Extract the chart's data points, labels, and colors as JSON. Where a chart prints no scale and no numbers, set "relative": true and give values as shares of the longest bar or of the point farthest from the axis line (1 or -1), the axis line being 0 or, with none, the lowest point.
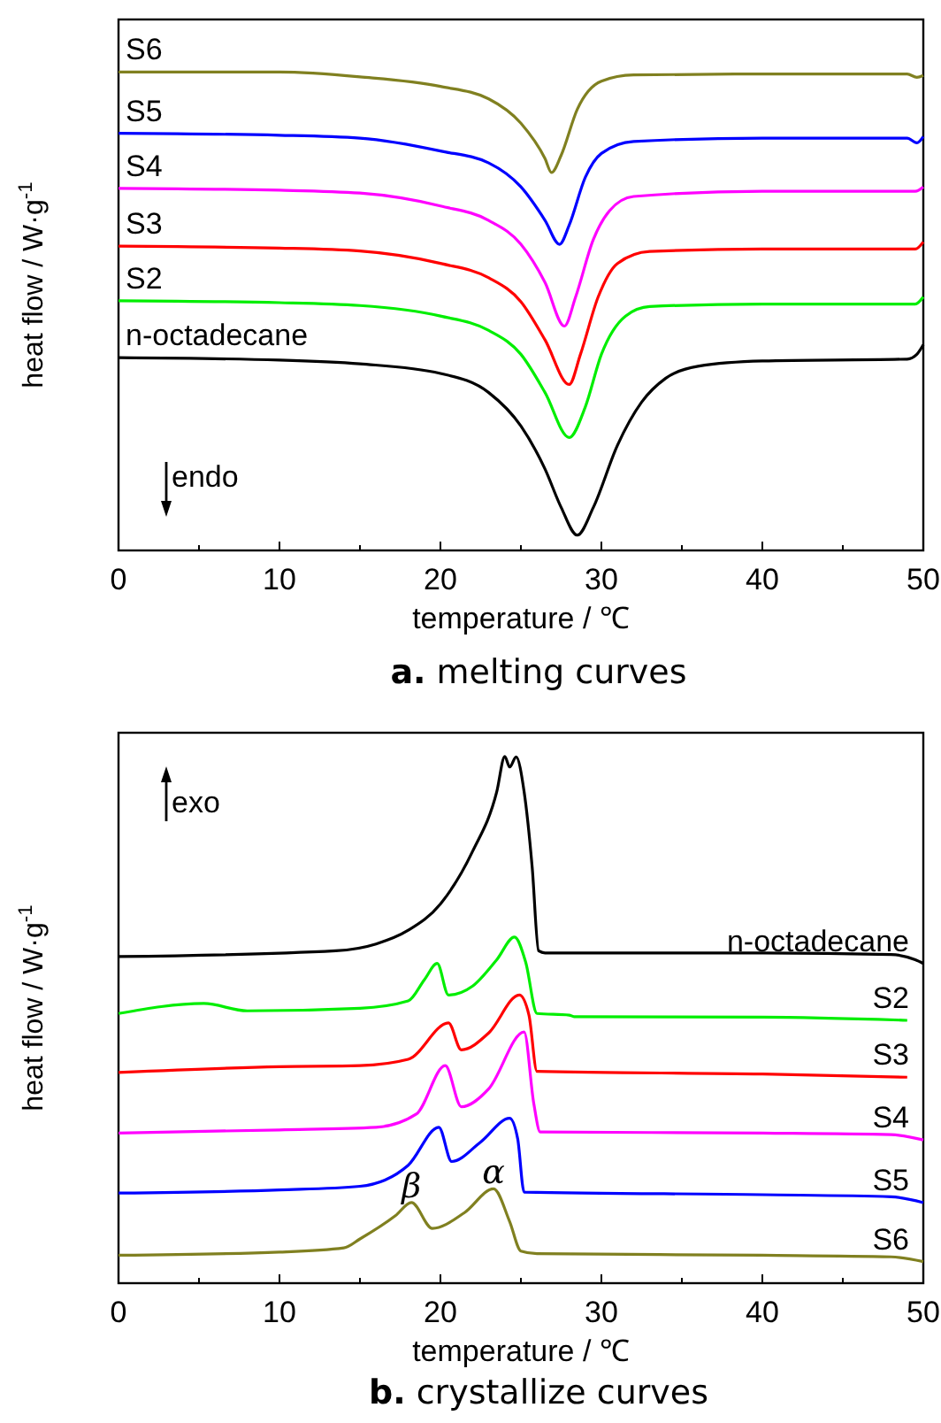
{
  "chart_data": [
    {
      "type": "line",
      "title": "a.  melting curves",
      "xlabel": "temperature / ℃",
      "ylabel": "heat flow / W·g$^{-1}$",
      "relative": true,
      "xlim": [
        0,
        50
      ],
      "xticks": [
        0,
        {
          "value": 5,
          "label": null
        },
        10,
        {
          "value": 15,
          "label": null
        },
        20,
        {
          "value": 25,
          "label": null
        },
        30,
        {
          "value": 35,
          "label": null
        },
        40,
        {
          "value": 45,
          "label": null
        },
        50
      ],
      "grid": false,
      "marker": "none",
      "line_style": "solid",
      "annotations": [
        "endo"
      ],
      "series": [
        {
          "name": "S6",
          "color": "#808020",
          "x": [
            0,
            10,
            15,
            20,
            23,
            25,
            26.5,
            26.9,
            27.5,
            28.5,
            30,
            32,
            40,
            49,
            49.6,
            50
          ],
          "values": [
            1.0,
            1.0,
            0.99,
            0.97,
            0.944,
            0.893,
            0.819,
            0.79,
            0.826,
            0.922,
            0.981,
            0.994,
            0.996,
            0.996,
            0.989,
            0.993
          ]
        },
        {
          "name": "S5",
          "color": "#0000ff",
          "x": [
            0,
            10,
            15,
            20,
            23,
            25,
            26.5,
            27.4,
            28,
            29,
            30,
            32,
            40,
            49,
            49.6,
            50
          ],
          "values": [
            0.872,
            0.868,
            0.862,
            0.835,
            0.81,
            0.76,
            0.69,
            0.64,
            0.68,
            0.78,
            0.83,
            0.855,
            0.862,
            0.862,
            0.852,
            0.865
          ]
        },
        {
          "name": "S4",
          "color": "#ff00ff",
          "x": [
            0,
            10,
            15,
            20,
            23,
            25,
            26.5,
            27.7,
            28.4,
            29.5,
            30.5,
            32,
            40,
            49.5,
            50
          ],
          "values": [
            0.757,
            0.753,
            0.747,
            0.72,
            0.69,
            0.64,
            0.56,
            0.469,
            0.53,
            0.65,
            0.71,
            0.74,
            0.751,
            0.751,
            0.76
          ]
        },
        {
          "name": "S3",
          "color": "#ff0000",
          "x": [
            0,
            10,
            15,
            20,
            23,
            25,
            26.5,
            28,
            28.7,
            29.8,
            31,
            33,
            40,
            49.5,
            50
          ],
          "values": [
            0.636,
            0.632,
            0.626,
            0.6,
            0.57,
            0.52,
            0.44,
            0.347,
            0.41,
            0.53,
            0.6,
            0.625,
            0.63,
            0.63,
            0.645
          ]
        },
        {
          "name": "S2",
          "color": "#00ee00",
          "x": [
            0,
            10,
            15,
            20,
            23,
            25,
            26.5,
            28,
            29,
            30,
            31.5,
            33,
            40,
            49.5,
            50
          ],
          "values": [
            0.522,
            0.518,
            0.512,
            0.49,
            0.46,
            0.41,
            0.33,
            0.236,
            0.3,
            0.41,
            0.49,
            0.51,
            0.515,
            0.515,
            0.53
          ]
        },
        {
          "name": "n-octadecane",
          "color": "#000000",
          "x": [
            0,
            10,
            15,
            20,
            23,
            25,
            26.5,
            27.5,
            28.5,
            29.5,
            31,
            32.5,
            34,
            36,
            40,
            49,
            49.6,
            50
          ],
          "values": [
            0.403,
            0.398,
            0.39,
            0.37,
            0.33,
            0.26,
            0.17,
            0.09,
            0.032,
            0.09,
            0.22,
            0.31,
            0.36,
            0.385,
            0.396,
            0.4,
            0.41,
            0.43
          ]
        }
      ]
    },
    {
      "type": "line",
      "title": "b.  crystallize curves",
      "xlabel": "temperature / ℃",
      "ylabel": "heat flow / W·g$^{-1}$",
      "relative": true,
      "xlim": [
        0,
        50
      ],
      "xticks": [
        0,
        {
          "value": 5,
          "label": null
        },
        10,
        {
          "value": 15,
          "label": null
        },
        20,
        {
          "value": 25,
          "label": null
        },
        30,
        {
          "value": 35,
          "label": null
        },
        40,
        {
          "value": 45,
          "label": null
        },
        50
      ],
      "grid": false,
      "marker": "none",
      "line_style": "solid",
      "annotations": [
        "exo",
        {
          "text": "β",
          "x": 18.2,
          "y": 0.153
        },
        {
          "text": "α",
          "x": 23.3,
          "y": 0.179
        }
      ],
      "series": [
        {
          "name": "n-octadecane",
          "color": "#000000",
          "x": [
            0,
            13.5,
            16,
            18,
            20,
            22,
            23.5,
            24,
            24.3,
            24.7,
            25.2,
            25.7,
            26.1,
            26.5,
            40,
            48,
            49.5,
            50
          ],
          "values": [
            0.62,
            0.631,
            0.644,
            0.67,
            0.72,
            0.82,
            0.933,
            1.0,
            0.98,
            0.999,
            0.933,
            0.79,
            0.631,
            0.627,
            0.627,
            0.624,
            0.614,
            0.607
          ]
        },
        {
          "name": "S2",
          "color": "#00ee00",
          "x": [
            0,
            5.3,
            8,
            15,
            18,
            19,
            19.8,
            20.5,
            22,
            23.5,
            24.6,
            25.3,
            26,
            28,
            28.3,
            40,
            49
          ],
          "values": [
            0.512,
            0.531,
            0.517,
            0.522,
            0.536,
            0.576,
            0.607,
            0.547,
            0.564,
            0.614,
            0.657,
            0.609,
            0.512,
            0.509,
            0.506,
            0.505,
            0.499
          ]
        },
        {
          "name": "S3",
          "color": "#ff0000",
          "x": [
            0,
            10,
            15,
            18,
            20.5,
            21.3,
            23,
            24.9,
            25.5,
            26,
            40,
            49
          ],
          "values": [
            0.4,
            0.411,
            0.413,
            0.425,
            0.494,
            0.443,
            0.475,
            0.547,
            0.509,
            0.402,
            0.397,
            0.391
          ]
        },
        {
          "name": "S4",
          "color": "#ff00ff",
          "x": [
            0,
            10,
            16,
            18.5,
            20.3,
            21.3,
            23,
            25.2,
            25.8,
            26.2,
            40,
            48,
            50
          ],
          "values": [
            0.285,
            0.291,
            0.296,
            0.321,
            0.413,
            0.335,
            0.369,
            0.477,
            0.341,
            0.287,
            0.285,
            0.282,
            0.272
          ]
        },
        {
          "name": "S5",
          "color": "#0000ff",
          "x": [
            0,
            10,
            15,
            18,
            19.9,
            20.7,
            22.5,
            24.3,
            24.8,
            25.2,
            40,
            48,
            50
          ],
          "values": [
            0.171,
            0.177,
            0.184,
            0.224,
            0.296,
            0.231,
            0.268,
            0.313,
            0.274,
            0.173,
            0.168,
            0.164,
            0.153
          ]
        },
        {
          "name": "S6",
          "color": "#808020",
          "x": [
            0,
            10,
            14,
            15,
            17.2,
            18.2,
            19.5,
            21.5,
            23.3,
            24.3,
            25,
            26,
            40,
            48,
            50
          ],
          "values": [
            0.053,
            0.059,
            0.067,
            0.084,
            0.128,
            0.153,
            0.104,
            0.134,
            0.179,
            0.117,
            0.061,
            0.056,
            0.053,
            0.05,
            0.041
          ]
        }
      ]
    }
  ]
}
